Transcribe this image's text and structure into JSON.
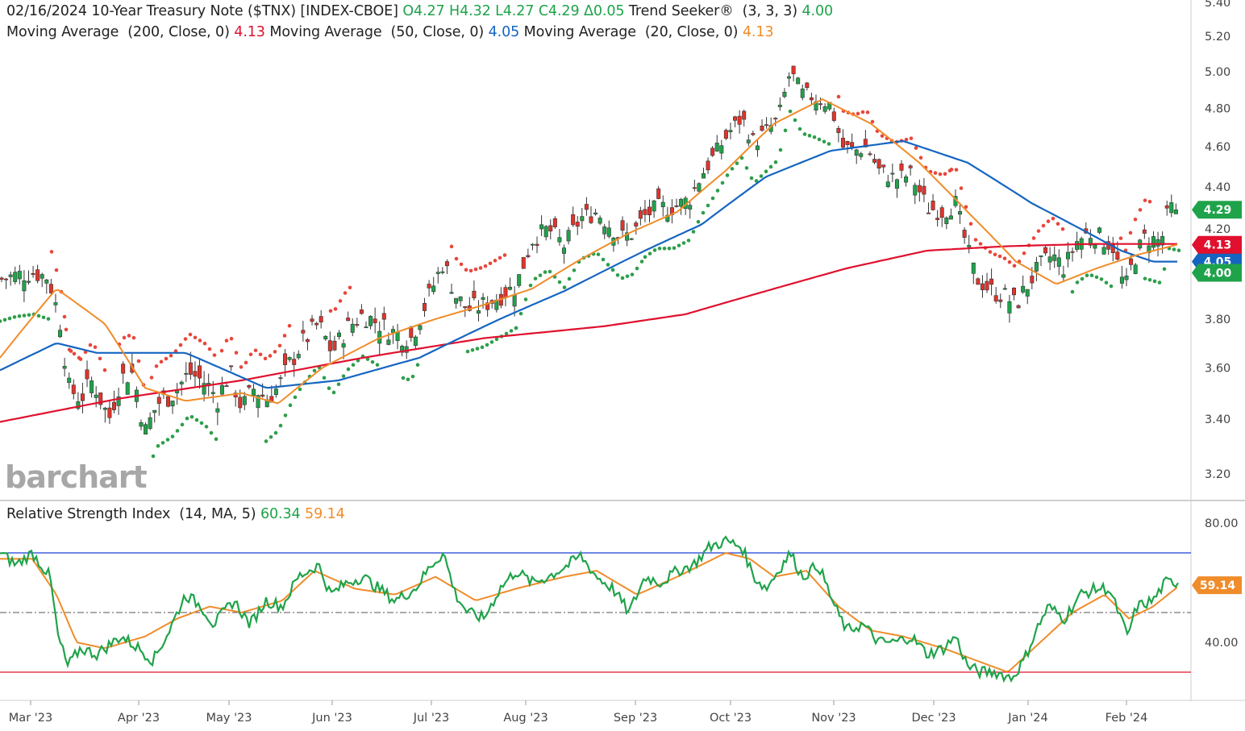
{
  "header": {
    "date": "02/16/2024",
    "instrument": "10-Year Treasury Note ($TNX) [INDEX-CBOE]",
    "ohlc": {
      "open": "O4.27",
      "high": "H4.32",
      "low": "L4.27",
      "close": "C4.29",
      "change": "Δ0.05"
    },
    "trend_seeker_label": "Trend Seeker®",
    "trend_seeker_params": "(3, 3, 3)",
    "trend_seeker_value": "4.00",
    "ma200_label": "Moving Average",
    "ma200_params": "(200, Close, 0)",
    "ma200_value": "4.13",
    "ma50_label": "Moving Average",
    "ma50_params": "(50, Close, 0)",
    "ma50_value": "4.05",
    "ma20_label": "Moving Average",
    "ma20_params": "(20, Close, 0)",
    "ma20_value": "4.13",
    "rsi_label": "Relative Strength Index",
    "rsi_params": "(14, MA, 5)",
    "rsi_value": "60.34",
    "rsi_ma_value": "59.14"
  },
  "logo_text": "barchart",
  "colors": {
    "up": "#1fa34a",
    "down": "#e0342c",
    "ma200": "#e0102e",
    "ma50": "#1565c0",
    "ma20": "#f08c2a",
    "rsi": "#1fa34a",
    "rsi_ma": "#f08c2a",
    "overbought": "#1a3fd6",
    "oversold": "#e0102e",
    "trend_up": "#2e9e4a",
    "trend_down": "#e8473c"
  },
  "chart_data": [
    {
      "type": "candlestick",
      "title": "10-Year Treasury Note ($TNX) [INDEX-CBOE]",
      "x": [
        "Mar '23",
        "Apr '23",
        "May '23",
        "Jun '23",
        "Jul '23",
        "Aug '23",
        "Sep '23",
        "Oct '23",
        "Nov '23",
        "Dec '23",
        "Jan '24",
        "Feb '24"
      ],
      "y_ticks": [
        "5.40",
        "5.20",
        "5.00",
        "4.80",
        "4.60",
        "4.40",
        "4.20",
        "4.00",
        "3.80",
        "3.60",
        "3.40",
        "3.20"
      ],
      "ylim": [
        3.2,
        5.4
      ],
      "y_scale": "log",
      "monthly_close_approx": [
        {
          "month": "Mar '23",
          "value": 3.95
        },
        {
          "month": "Apr '23",
          "value": 3.45
        },
        {
          "month": "May '23",
          "value": 3.57
        },
        {
          "month": "Jun '23",
          "value": 3.7
        },
        {
          "month": "Jul '23",
          "value": 3.84
        },
        {
          "month": "Aug '23",
          "value": 4.1
        },
        {
          "month": "Sep '23",
          "value": 4.27
        },
        {
          "month": "Oct '23",
          "value": 4.88
        },
        {
          "month": "Nov '23",
          "value": 4.62
        },
        {
          "month": "Dec '23",
          "value": 4.2
        },
        {
          "month": "Jan '24",
          "value": 3.97
        },
        {
          "month": "Feb '24",
          "value": 4.06
        }
      ],
      "series": [
        {
          "name": "Moving Average (200, Close, 0)",
          "last": 4.13
        },
        {
          "name": "Moving Average (50, Close, 0)",
          "last": 4.05
        },
        {
          "name": "Moving Average (20, Close, 0)",
          "last": 4.13
        },
        {
          "name": "Trend Seeker® (3, 3, 3)",
          "last": 4.0
        }
      ],
      "price_labels": [
        {
          "value": "4.29",
          "color": "#1fa34a"
        },
        {
          "value": "4.13",
          "color": "#e0102e"
        },
        {
          "value": "4.05",
          "color": "#1565c0"
        },
        {
          "value": "4.00",
          "color": "#1fa34a"
        }
      ],
      "last": {
        "open": 4.27,
        "high": 4.32,
        "low": 4.27,
        "close": 4.29,
        "change": 0.05
      }
    },
    {
      "type": "line",
      "title": "Relative Strength Index",
      "y_ticks": [
        "80.00",
        "40.00"
      ],
      "ylim": [
        20,
        90
      ],
      "overbought": 70,
      "oversold": 30,
      "midline": 50,
      "monthly_rsi_approx": [
        {
          "month": "Mar '23",
          "value": 40
        },
        {
          "month": "Apr '23",
          "value": 40
        },
        {
          "month": "May '23",
          "value": 48
        },
        {
          "month": "Jun '23",
          "value": 56
        },
        {
          "month": "Jul '23",
          "value": 62
        },
        {
          "month": "Aug '23",
          "value": 60
        },
        {
          "month": "Sep '23",
          "value": 62
        },
        {
          "month": "Oct '23",
          "value": 68
        },
        {
          "month": "Nov '23",
          "value": 44
        },
        {
          "month": "Dec '23",
          "value": 35
        },
        {
          "month": "Jan '24",
          "value": 48
        },
        {
          "month": "Feb '24",
          "value": 57
        }
      ],
      "series": [
        {
          "name": "RSI (14)",
          "last": 60.34
        },
        {
          "name": "MA (5)",
          "last": 59.14
        }
      ],
      "price_label": "59.14"
    }
  ]
}
